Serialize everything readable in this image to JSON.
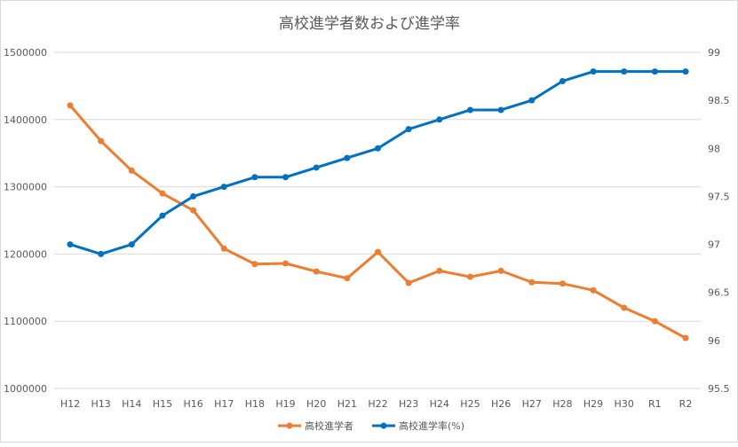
{
  "chart_data": {
    "type": "line",
    "title": "高校進学者数および進学率",
    "categories": [
      "H12",
      "H13",
      "H14",
      "H15",
      "H16",
      "H17",
      "H18",
      "H19",
      "H20",
      "H21",
      "H22",
      "H23",
      "H24",
      "H25",
      "H26",
      "H27",
      "H28",
      "H29",
      "H30",
      "R1",
      "R2"
    ],
    "series": [
      {
        "name": "高校進学者",
        "axis": "left",
        "color": "#ED7D31",
        "values": [
          1421000,
          1368000,
          1324000,
          1290000,
          1265000,
          1208000,
          1185000,
          1186000,
          1174000,
          1164000,
          1203000,
          1157000,
          1175000,
          1166000,
          1175000,
          1158000,
          1156000,
          1146000,
          1120000,
          1100000,
          1075000
        ]
      },
      {
        "name": "高校進学率(%)",
        "axis": "right",
        "color": "#0070C0",
        "values": [
          97.0,
          96.9,
          97.0,
          97.3,
          97.5,
          97.6,
          97.7,
          97.7,
          97.8,
          97.9,
          98.0,
          98.2,
          98.3,
          98.4,
          98.4,
          98.5,
          98.7,
          98.8,
          98.8,
          98.8,
          98.8
        ]
      }
    ],
    "left_axis": {
      "ylim": [
        1000000,
        1500000
      ],
      "ticks": [
        "1000000",
        "1100000",
        "1200000",
        "1300000",
        "1400000",
        "1500000"
      ]
    },
    "right_axis": {
      "ylim": [
        95.5,
        99
      ],
      "ticks": [
        "95.5",
        "96",
        "96.5",
        "97",
        "97.5",
        "98",
        "98.5",
        "99"
      ]
    },
    "grid": true,
    "legend": "bottom"
  }
}
